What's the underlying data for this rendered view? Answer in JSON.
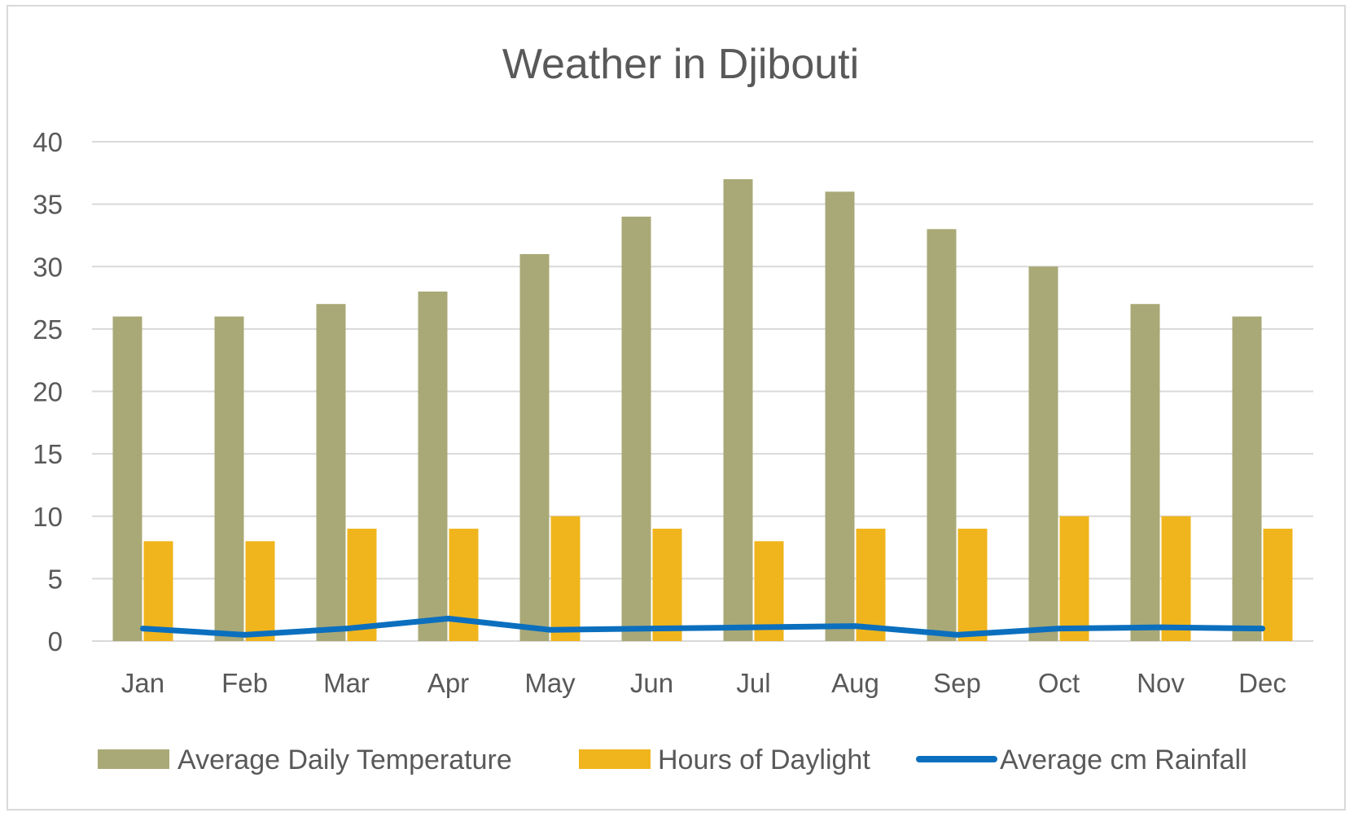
{
  "chart_data": {
    "type": "bar",
    "title": "Weather in Djibouti",
    "categories": [
      "Jan",
      "Feb",
      "Mar",
      "Apr",
      "May",
      "Jun",
      "Jul",
      "Aug",
      "Sep",
      "Oct",
      "Nov",
      "Dec"
    ],
    "series": [
      {
        "name": "Average Daily Temperature",
        "type": "bar",
        "color": "#a9a977",
        "values": [
          26,
          26,
          27,
          28,
          31,
          34,
          37,
          36,
          33,
          30,
          27,
          26
        ]
      },
      {
        "name": "Hours of Daylight",
        "type": "bar",
        "color": "#f0b51c",
        "values": [
          8,
          8,
          9,
          9,
          10,
          9,
          8,
          9,
          9,
          10,
          10,
          9
        ]
      },
      {
        "name": "Average cm Rainfall",
        "type": "line",
        "color": "#0b6fbe",
        "values": [
          1.0,
          0.5,
          1.0,
          1.8,
          0.9,
          1.0,
          1.1,
          1.2,
          0.5,
          1.0,
          1.1,
          1.0
        ]
      }
    ],
    "ylim": [
      0,
      40
    ],
    "yticks": [
      0,
      5,
      10,
      15,
      20,
      25,
      30,
      35,
      40
    ],
    "xlabel": "",
    "ylabel": "",
    "grid": true,
    "legend_position": "bottom"
  }
}
